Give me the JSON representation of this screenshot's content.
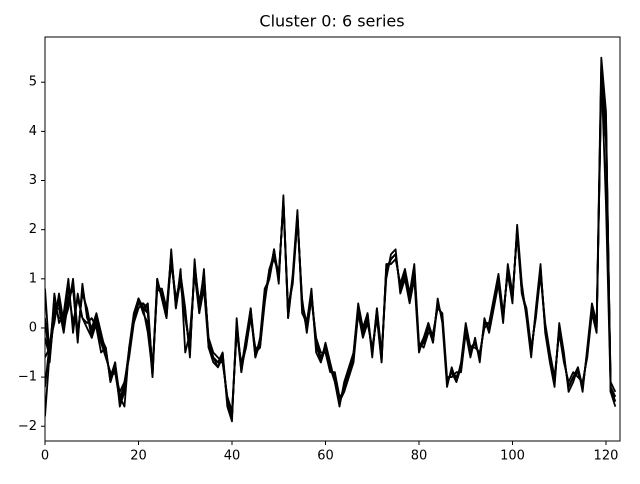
{
  "chart_data": {
    "type": "line",
    "title": "Cluster 0: 6 series",
    "x": [
      0,
      1,
      2,
      3,
      4,
      5,
      6,
      7,
      8,
      9,
      10,
      11,
      12,
      13,
      14,
      15,
      16,
      17,
      18,
      19,
      20,
      21,
      22,
      23,
      24,
      25,
      26,
      27,
      28,
      29,
      30,
      31,
      32,
      33,
      34,
      35,
      36,
      37,
      38,
      39,
      40,
      41,
      42,
      43,
      44,
      45,
      46,
      47,
      48,
      49,
      50,
      51,
      52,
      53,
      54,
      55,
      56,
      57,
      58,
      59,
      60,
      61,
      62,
      63,
      64,
      65,
      66,
      67,
      68,
      69,
      70,
      71,
      72,
      73,
      74,
      75,
      76,
      77,
      78,
      79,
      80,
      81,
      82,
      83,
      84,
      85,
      86,
      87,
      88,
      89,
      90,
      91,
      92,
      93,
      94,
      95,
      96,
      97,
      98,
      99,
      100,
      101,
      102,
      103,
      104,
      105,
      106,
      107,
      108,
      109,
      110,
      111,
      112,
      113,
      114,
      115,
      116,
      117,
      118,
      119,
      120,
      121,
      122
    ],
    "series": [
      {
        "color": "#000000",
        "values": [
          -1.8,
          -0.5,
          0.2,
          0.6,
          0.0,
          0.5,
          0.9,
          -0.2,
          0.8,
          0.3,
          -0.1,
          0.2,
          -0.2,
          -0.5,
          -1.0,
          -0.8,
          -1.5,
          -1.2,
          -0.5,
          0.2,
          0.5,
          0.4,
          -0.1,
          -0.9,
          0.9,
          0.7,
          0.3,
          1.5,
          0.5,
          1.0,
          0.3,
          -0.5,
          1.3,
          0.4,
          1.1,
          -0.3,
          -0.6,
          -0.7,
          -0.6,
          -1.5,
          -1.8,
          0.0,
          -0.8,
          -0.3,
          0.3,
          -0.5,
          -0.3,
          0.6,
          1.1,
          1.5,
          1.0,
          2.6,
          0.3,
          1.0,
          2.3,
          0.5,
          0.0,
          0.7,
          -0.3,
          -0.6,
          -0.4,
          -0.8,
          -1.0,
          -1.5,
          -1.2,
          -0.9,
          -0.6,
          0.4,
          -0.1,
          0.2,
          -0.5,
          0.3,
          -0.6,
          1.2,
          1.4,
          1.5,
          0.8,
          1.1,
          0.6,
          1.2,
          -0.4,
          -0.3,
          0.0,
          -0.2,
          0.5,
          0.2,
          -1.1,
          -0.9,
          -1.0,
          -0.8,
          0.0,
          -0.5,
          -0.3,
          -0.6,
          0.1,
          0.0,
          0.5,
          1.0,
          0.2,
          1.2,
          0.6,
          2.0,
          0.8,
          0.3,
          -0.5,
          0.3,
          1.2,
          0.0,
          -0.6,
          -1.1,
          0.0,
          -0.6,
          -1.2,
          -1.0,
          -0.9,
          -1.2,
          -0.5,
          0.4,
          0.0,
          5.2,
          4.3,
          -1.2,
          -1.4
        ]
      },
      {
        "color": "#000000",
        "values": [
          0.8,
          -0.6,
          0.7,
          0.1,
          0.3,
          1.0,
          -0.1,
          0.7,
          0.2,
          0.1,
          0.2,
          0.0,
          -0.5,
          -0.4,
          -1.1,
          -0.7,
          -1.4,
          -1.6,
          -0.4,
          0.3,
          0.6,
          0.3,
          0.1,
          -1.0,
          1.0,
          0.6,
          0.2,
          1.6,
          0.4,
          1.2,
          -0.5,
          -0.1,
          1.1,
          0.3,
          0.8,
          -0.4,
          -0.7,
          -0.8,
          -0.5,
          -1.6,
          -1.9,
          0.2,
          -0.9,
          -0.2,
          0.4,
          -0.6,
          -0.2,
          0.8,
          1.0,
          1.6,
          0.9,
          2.7,
          0.2,
          1.1,
          2.4,
          0.3,
          0.1,
          0.8,
          -0.5,
          -0.7,
          -0.3,
          -0.7,
          -1.1,
          -1.6,
          -1.1,
          -0.8,
          -0.5,
          0.5,
          0.0,
          0.3,
          -0.6,
          0.4,
          -0.5,
          1.0,
          1.5,
          1.6,
          0.7,
          1.0,
          0.5,
          1.0,
          -0.5,
          -0.2,
          0.1,
          -0.3,
          0.6,
          0.1,
          -1.2,
          -0.8,
          -1.1,
          -0.7,
          0.1,
          -0.4,
          -0.4,
          -0.5,
          0.0,
          0.1,
          0.6,
          1.1,
          0.3,
          1.1,
          0.5,
          2.1,
          0.9,
          0.2,
          -0.6,
          0.4,
          1.3,
          -0.1,
          -0.7,
          -1.2,
          0.1,
          -0.5,
          -1.3,
          -1.1,
          -0.8,
          -1.3,
          -0.4,
          0.5,
          0.1,
          5.5,
          4.4,
          -1.3,
          -1.6
        ]
      },
      {
        "color": "#000000",
        "values": [
          -0.6,
          -0.4,
          0.5,
          0.2,
          0.2,
          0.8,
          0.1,
          0.6,
          0.2,
          0.0,
          -0.2,
          0.1,
          -0.3,
          -0.6,
          -0.9,
          -0.9,
          -1.3,
          -1.1,
          -0.6,
          0.1,
          0.4,
          0.5,
          0.3,
          -0.8,
          0.8,
          0.8,
          0.4,
          1.3,
          0.6,
          0.9,
          0.2,
          -0.4,
          1.2,
          0.5,
          1.0,
          -0.2,
          -0.5,
          -0.6,
          -0.7,
          -1.4,
          -1.7,
          -0.1,
          -0.7,
          -0.4,
          0.2,
          -0.4,
          -0.4,
          0.5,
          1.2,
          1.4,
          1.1,
          2.5,
          0.4,
          0.9,
          2.2,
          0.6,
          -0.1,
          0.6,
          -0.2,
          -0.5,
          -0.5,
          -0.9,
          -0.9,
          -1.4,
          -1.3,
          -1.0,
          -0.7,
          0.3,
          -0.2,
          0.1,
          -0.4,
          0.2,
          -0.7,
          1.3,
          1.3,
          1.4,
          0.9,
          1.2,
          0.7,
          1.3,
          -0.3,
          -0.4,
          -0.1,
          -0.1,
          0.4,
          0.3,
          -1.0,
          -1.0,
          -0.9,
          -0.9,
          -0.1,
          -0.6,
          -0.2,
          -0.7,
          0.2,
          -0.1,
          0.4,
          0.9,
          0.1,
          1.3,
          0.7,
          1.9,
          0.7,
          0.4,
          -0.4,
          0.2,
          1.1,
          0.1,
          -0.5,
          -1.0,
          -0.1,
          -0.7,
          -1.1,
          -0.9,
          -1.0,
          -1.1,
          -0.6,
          0.3,
          -0.1,
          5.0,
          4.0,
          -1.1,
          -1.3
        ]
      },
      {
        "color": "#000000",
        "values": [
          0.2,
          -0.7,
          0.4,
          0.4,
          -0.1,
          0.6,
          0.8,
          -0.3,
          0.9,
          0.2,
          0.0,
          0.3,
          -0.1,
          -0.5,
          -1.0,
          -0.7,
          -1.6,
          -1.3,
          -0.5,
          0.2,
          0.6,
          0.4,
          0.5,
          -0.9,
          1.0,
          0.6,
          0.2,
          1.4,
          0.5,
          1.1,
          0.4,
          -0.6,
          1.4,
          0.3,
          1.2,
          -0.4,
          -0.6,
          -0.8,
          -0.6,
          -1.5,
          -1.8,
          0.1,
          -0.8,
          -0.2,
          0.3,
          -0.6,
          -0.3,
          0.7,
          1.0,
          1.5,
          1.0,
          2.6,
          0.2,
          1.0,
          2.3,
          0.4,
          0.0,
          0.7,
          -0.4,
          -0.6,
          -0.4,
          -0.8,
          -1.0,
          -1.5,
          -1.2,
          -0.9,
          -0.6,
          0.4,
          -0.1,
          0.2,
          -0.5,
          0.3,
          -0.6,
          1.2,
          1.4,
          1.5,
          0.8,
          1.1,
          0.6,
          1.1,
          -0.4,
          -0.3,
          0.0,
          -0.2,
          0.5,
          0.2,
          -1.1,
          -0.9,
          -1.0,
          -0.8,
          0.0,
          -0.5,
          -0.3,
          -0.6,
          0.1,
          0.0,
          0.5,
          1.0,
          0.2,
          1.2,
          0.6,
          2.0,
          0.8,
          0.3,
          -0.5,
          0.3,
          1.2,
          0.0,
          -0.6,
          -1.1,
          0.0,
          -0.6,
          -1.2,
          -1.0,
          -0.9,
          -1.2,
          -0.5,
          0.4,
          0.0,
          5.3,
          2.5,
          -1.3,
          -1.4
        ]
      },
      {
        "color": "#000000",
        "values": [
          -1.2,
          -0.3,
          0.1,
          0.7,
          0.1,
          0.4,
          1.0,
          -0.1,
          0.7,
          0.4,
          -0.1,
          0.1,
          -0.2,
          -0.4,
          -1.1,
          -0.8,
          -1.4,
          -1.2,
          -0.4,
          0.2,
          0.5,
          0.5,
          0.4,
          -0.9,
          0.8,
          0.7,
          0.4,
          1.5,
          0.4,
          1.0,
          0.3,
          -0.5,
          1.3,
          0.5,
          1.1,
          -0.3,
          -0.6,
          -0.7,
          -0.5,
          -1.5,
          -1.8,
          0.0,
          -0.9,
          -0.3,
          0.4,
          -0.5,
          -0.3,
          0.6,
          1.2,
          1.5,
          1.1,
          2.5,
          0.3,
          1.0,
          2.2,
          0.5,
          0.1,
          0.7,
          -0.3,
          -0.7,
          -0.4,
          -0.8,
          -1.1,
          -1.5,
          -1.2,
          -0.9,
          -0.5,
          0.4,
          -0.1,
          0.3,
          -0.5,
          0.4,
          -0.6,
          1.1,
          1.4,
          1.5,
          0.8,
          1.0,
          0.6,
          1.2,
          -0.4,
          -0.2,
          0.0,
          -0.3,
          0.5,
          0.2,
          -1.1,
          -0.9,
          -1.1,
          -0.8,
          0.0,
          -0.4,
          -0.3,
          -0.6,
          0.1,
          0.1,
          0.5,
          0.9,
          0.2,
          1.2,
          0.6,
          2.0,
          0.7,
          0.3,
          -0.5,
          0.3,
          1.1,
          0.0,
          -0.6,
          -1.1,
          0.0,
          -0.6,
          -1.2,
          -1.0,
          -0.8,
          -1.2,
          -0.5,
          0.4,
          0.1,
          4.9,
          3.8,
          -1.2,
          -1.5
        ]
      },
      {
        "color": "#000000",
        "values": [
          -0.2,
          -0.6,
          0.3,
          0.5,
          0.0,
          0.6,
          0.9,
          -0.2,
          0.8,
          0.3,
          -0.2,
          0.2,
          -0.3,
          -0.5,
          -1.0,
          -0.9,
          -1.5,
          -1.1,
          -0.5,
          0.1,
          0.6,
          0.4,
          0.3,
          -1.0,
          0.9,
          0.7,
          0.3,
          1.4,
          0.6,
          1.0,
          0.3,
          -0.4,
          1.2,
          0.4,
          1.0,
          -0.3,
          -0.6,
          -0.7,
          -0.7,
          -1.4,
          -1.7,
          0.0,
          -0.8,
          -0.4,
          0.3,
          -0.5,
          -0.4,
          0.6,
          1.1,
          1.6,
          1.0,
          2.6,
          0.4,
          1.0,
          2.3,
          0.5,
          0.0,
          0.6,
          -0.3,
          -0.6,
          -0.4,
          -0.8,
          -1.0,
          -1.5,
          -1.3,
          -0.9,
          -0.6,
          0.3,
          -0.1,
          0.2,
          -0.5,
          0.3,
          -0.7,
          1.2,
          1.4,
          1.5,
          0.8,
          1.1,
          0.6,
          1.2,
          -0.4,
          -0.3,
          0.1,
          -0.2,
          0.5,
          0.2,
          -1.1,
          -0.9,
          -1.0,
          -0.8,
          0.0,
          -0.5,
          -0.3,
          -0.6,
          0.1,
          0.0,
          0.5,
          1.0,
          0.2,
          1.2,
          0.6,
          2.0,
          0.8,
          0.3,
          -0.5,
          0.3,
          1.2,
          0.0,
          -0.6,
          -1.1,
          0.0,
          -0.6,
          -1.2,
          -1.0,
          -0.9,
          -1.2,
          -0.5,
          0.4,
          0.0,
          5.1,
          4.2,
          -1.3,
          -1.4
        ]
      }
    ],
    "xlim": [
      0,
      123
    ],
    "ylim": [
      -2.3,
      5.92
    ],
    "xticks": [
      0,
      20,
      40,
      60,
      80,
      100,
      120
    ],
    "yticks": [
      {
        "value": -2,
        "label": "−2"
      },
      {
        "value": -1,
        "label": "−1"
      },
      0,
      1,
      2,
      3,
      4,
      5
    ],
    "grid": false
  }
}
